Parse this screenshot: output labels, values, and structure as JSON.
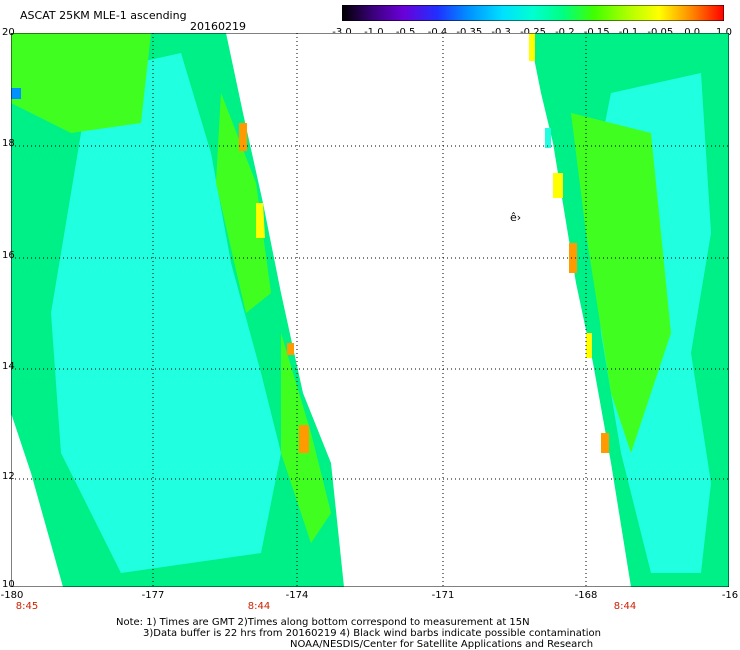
{
  "header": {
    "title": "ASCAT 25KM MLE-1 ascending",
    "date": "20160219"
  },
  "colorbar": {
    "ticks": [
      "-3.0",
      "-1.0",
      "-0.5",
      "-0.4",
      "-0.35",
      "-0.3",
      "-0.25",
      "-0.2",
      "-0.15",
      "-0.1",
      "-0.05",
      "0.0",
      "1.0"
    ],
    "colors": [
      "#000000",
      "#3a007a",
      "#6a00d8",
      "#2030ff",
      "#0090ff",
      "#00e0ff",
      "#00ffd0",
      "#00ff80",
      "#40ff00",
      "#b0ff00",
      "#ffff00",
      "#ff9000",
      "#ff0000"
    ]
  },
  "map": {
    "lat_labels": [
      "20",
      "18",
      "16",
      "14",
      "12",
      "10"
    ],
    "lon_labels": [
      "-180",
      "-177",
      "-174",
      "-171",
      "-168",
      "-16"
    ],
    "time_labels": [
      "8:45",
      "8:44",
      "8:44"
    ],
    "annotation": "ê›",
    "swath_colors": {
      "base": "#00f088",
      "cyan": "#20ffe0",
      "green": "#40ff20",
      "yellow": "#ffff00",
      "orange": "#ff9a00",
      "blue": "#0090ff"
    }
  },
  "notes": {
    "line1": "Note: 1) Times are GMT 2)Times along bottom correspond to measurement at 15N",
    "line2": "3)Data buffer is 22 hrs from 20160219 4) Black wind barbs indicate possible contamination",
    "line3": "NOAA/NESDIS/Center for Satellite Applications and Research"
  }
}
